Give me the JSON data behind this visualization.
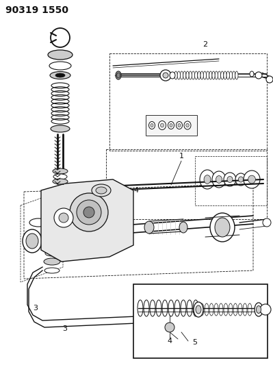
{
  "title": "90319 1550",
  "bg_color": "#ffffff",
  "fig_width": 3.99,
  "fig_height": 5.33,
  "dpi": 100,
  "dark": "#111111",
  "gray": "#888888",
  "lgray": "#cccccc"
}
